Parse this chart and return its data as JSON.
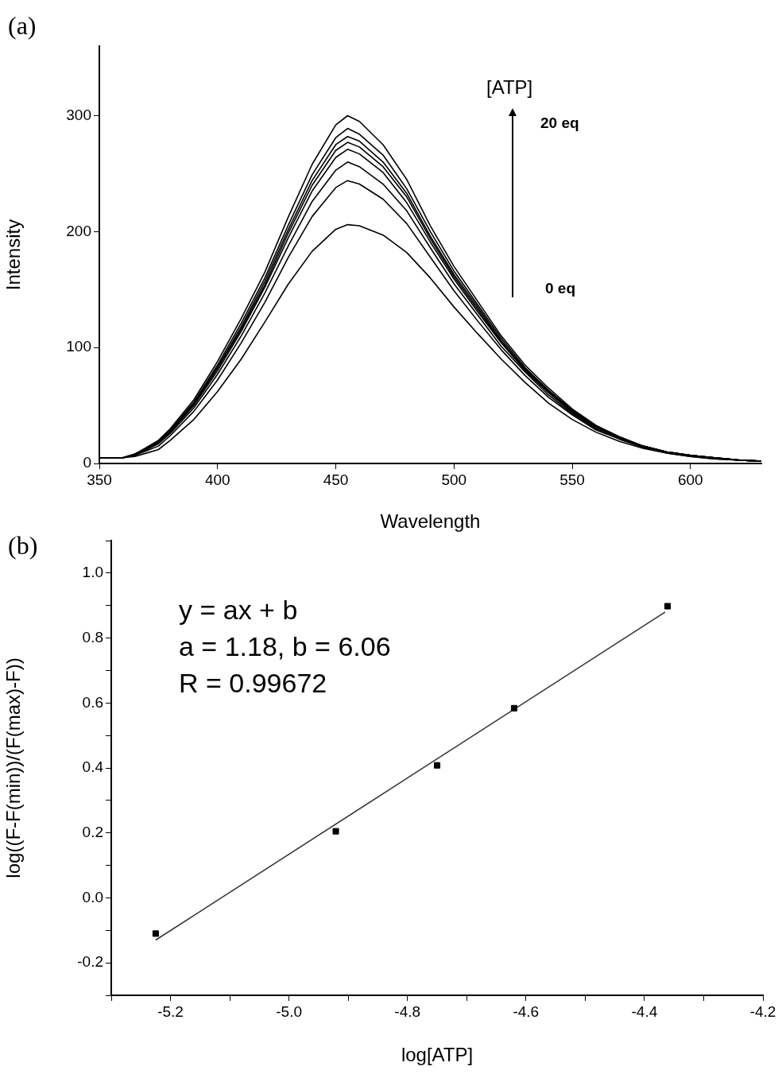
{
  "chart_data": [
    {
      "type": "line",
      "xlabel": "Wavelength",
      "ylabel": "Intensity",
      "annotations": [
        "(a)",
        "[ATP]",
        "20 eq",
        "0 eq"
      ],
      "x": [
        350,
        360,
        365,
        370,
        375,
        380,
        390,
        400,
        410,
        420,
        430,
        440,
        450,
        455,
        460,
        470,
        480,
        490,
        500,
        510,
        520,
        530,
        540,
        550,
        560,
        570,
        580,
        590,
        600,
        610,
        620,
        630
      ],
      "xlim": [
        350,
        630
      ],
      "xticks": [
        350,
        400,
        450,
        500,
        550,
        600
      ],
      "ylim": [
        0,
        360
      ],
      "yticks": [
        0,
        100,
        200,
        300
      ],
      "grid": false,
      "legend": false,
      "marker": "none",
      "line_style": "solid",
      "series": [
        {
          "color": "#000000",
          "values": [
            5,
            5,
            8,
            14,
            20,
            30,
            55,
            88,
            125,
            165,
            213,
            258,
            292,
            300,
            295,
            275,
            245,
            205,
            170,
            140,
            110,
            85,
            65,
            47,
            33,
            23,
            15,
            10,
            7,
            5,
            3,
            2
          ]
        },
        {
          "color": "#000000",
          "values": [
            5,
            5,
            8,
            13,
            19,
            29,
            53,
            85,
            121,
            160,
            206,
            249,
            281,
            289,
            284,
            266,
            237,
            200,
            166,
            137,
            108,
            83,
            63,
            46,
            32,
            23,
            15,
            10,
            7,
            5,
            3,
            2
          ]
        },
        {
          "color": "#000000",
          "values": [
            5,
            5,
            8,
            13,
            18,
            28,
            52,
            83,
            118,
            157,
            202,
            244,
            275,
            282,
            278,
            260,
            233,
            196,
            163,
            135,
            106,
            82,
            63,
            45,
            32,
            22,
            15,
            10,
            7,
            5,
            3,
            2
          ]
        },
        {
          "color": "#000000",
          "values": [
            5,
            5,
            8,
            13,
            18,
            28,
            51,
            82,
            116,
            154,
            199,
            240,
            270,
            277,
            273,
            256,
            230,
            194,
            161,
            133,
            105,
            81,
            62,
            45,
            32,
            22,
            15,
            10,
            7,
            5,
            3,
            2
          ]
        },
        {
          "color": "#000000",
          "values": [
            5,
            5,
            7,
            12,
            18,
            27,
            50,
            80,
            114,
            152,
            195,
            235,
            264,
            271,
            267,
            251,
            225,
            191,
            159,
            131,
            104,
            80,
            61,
            44,
            31,
            22,
            14,
            10,
            7,
            5,
            3,
            2
          ]
        },
        {
          "color": "#000000",
          "values": [
            5,
            5,
            7,
            12,
            17,
            26,
            48,
            77,
            110,
            147,
            188,
            226,
            253,
            260,
            256,
            241,
            218,
            186,
            155,
            128,
            101,
            79,
            59,
            43,
            30,
            21,
            14,
            10,
            7,
            5,
            3,
            2
          ]
        },
        {
          "color": "#000000",
          "values": [
            5,
            5,
            7,
            11,
            15,
            24,
            45,
            72,
            104,
            139,
            178,
            213,
            238,
            244,
            241,
            228,
            207,
            178,
            149,
            123,
            98,
            76,
            57,
            42,
            29,
            21,
            14,
            9,
            6,
            4,
            3,
            2
          ]
        },
        {
          "color": "#000000",
          "values": [
            5,
            5,
            6,
            9,
            12,
            20,
            38,
            62,
            90,
            122,
            155,
            183,
            202,
            206,
            205,
            197,
            182,
            160,
            135,
            112,
            90,
            70,
            52,
            38,
            27,
            19,
            13,
            9,
            6,
            4,
            3,
            2
          ]
        }
      ]
    },
    {
      "type": "scatter",
      "xlabel": "log[ATP]",
      "ylabel": "log((F-F(min))/(F(max)-F))",
      "annotations": [
        "(b)",
        "y = ax + b",
        "a = 1.18, b = 6.06",
        "R = 0.99672"
      ],
      "xlim": [
        -5.3,
        -4.2
      ],
      "xticks": [
        {
          "value": -5.3,
          "label": null
        },
        -5.2,
        {
          "value": -5.1,
          "label": null
        },
        {
          "value": -5.0,
          "label": "-5.0"
        },
        {
          "value": -4.9,
          "label": null
        },
        -4.8,
        {
          "value": -4.7,
          "label": null
        },
        -4.6,
        {
          "value": -4.5,
          "label": null
        },
        -4.4,
        {
          "value": -4.3,
          "label": null
        },
        -4.2
      ],
      "ylim": [
        -0.3,
        1.1
      ],
      "yticks": [
        {
          "value": -0.3,
          "label": null
        },
        -0.2,
        {
          "value": -0.1,
          "label": null
        },
        {
          "value": 0.0,
          "label": "0.0"
        },
        {
          "value": 0.1,
          "label": null
        },
        0.2,
        {
          "value": 0.3,
          "label": null
        },
        0.4,
        {
          "value": 0.5,
          "label": null
        },
        0.6,
        {
          "value": 0.7,
          "label": null
        },
        0.8,
        {
          "value": 0.9,
          "label": null
        },
        {
          "value": 1.0,
          "label": "1.0"
        },
        {
          "value": 1.1,
          "label": null
        }
      ],
      "grid": false,
      "legend": false,
      "marker": "square",
      "series": [
        {
          "color": "#000000",
          "x": [
            -5.225,
            -4.921,
            -4.75,
            -4.62,
            -4.361
          ],
          "values": [
            -0.11,
            0.205,
            0.408,
            0.584,
            0.898
          ]
        },
        {
          "type": "line",
          "marker": "none",
          "color": "#333333",
          "x": [
            -5.225,
            -4.365
          ],
          "values": [
            -0.13,
            0.88
          ]
        }
      ]
    }
  ]
}
